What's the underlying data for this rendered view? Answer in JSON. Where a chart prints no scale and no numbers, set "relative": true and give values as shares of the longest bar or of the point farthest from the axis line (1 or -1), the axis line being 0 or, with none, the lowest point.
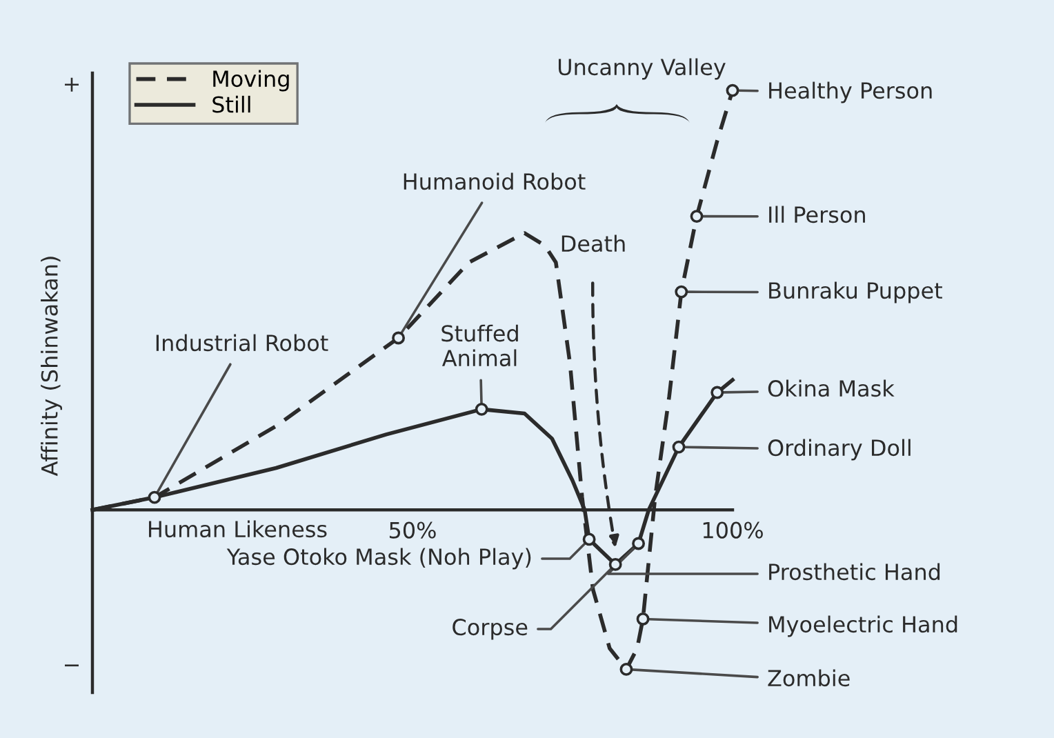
{
  "chart_data": {
    "type": "line",
    "relative": true,
    "xlabel": "Human Likeness",
    "ylabel": "Affinity (Shinwakan)",
    "xlim": [
      0,
      100
    ],
    "xticks": [
      {
        "value": 50,
        "label": "50%"
      },
      {
        "value": 100,
        "label": "100%"
      }
    ],
    "legend": "top left",
    "grid": false,
    "marker": "none",
    "series": [
      {
        "name": "Moving",
        "color": "#2b2b2b",
        "line_style": "dashed",
        "x": [
          0,
          9.7,
          28.7,
          47.8,
          58.8,
          67.5,
          70.7,
          72.4,
          74.6,
          76.5,
          78.2,
          80.8,
          83.4,
          85.1,
          86.0,
          87.9,
          90.1,
          92.0,
          94.4,
          97.6,
          100
        ],
        "values": [
          0,
          0.03,
          0.2,
          0.41,
          0.59,
          0.66,
          0.63,
          0.59,
          0.35,
          0.03,
          -0.19,
          -0.33,
          -0.38,
          -0.33,
          -0.26,
          0.03,
          0.27,
          0.52,
          0.7,
          0.88,
          1
        ]
      },
      {
        "name": "Still",
        "color": "#2b2b2b",
        "line_style": "solid",
        "x": [
          0,
          9.7,
          28.7,
          45.9,
          60.8,
          67.5,
          71.8,
          75.0,
          76.9,
          77.6,
          81.7,
          85.3,
          86.9,
          91.6,
          97.6,
          100
        ],
        "values": [
          0,
          0.03,
          0.1,
          0.18,
          0.24,
          0.23,
          0.17,
          0.07,
          0,
          -0.07,
          -0.13,
          -0.08,
          0,
          0.15,
          0.28,
          0.31
        ]
      }
    ],
    "annotations": [
      {
        "text": "Industrial Robot",
        "x": 9.7,
        "y": 0.03
      },
      {
        "text": "Humanoid Robot",
        "x": 47.8,
        "y": 0.41
      },
      {
        "text": "Stuffed\nAnimal",
        "x": 60.8,
        "y": 0.24
      },
      {
        "text": "Healthy Person",
        "x": 100,
        "y": 1
      },
      {
        "text": "Ill Person",
        "x": 94.4,
        "y": 0.7
      },
      {
        "text": "Bunraku Puppet",
        "x": 92.0,
        "y": 0.52
      },
      {
        "text": "Okina Mask",
        "x": 97.6,
        "y": 0.28
      },
      {
        "text": "Ordinary Doll",
        "x": 91.6,
        "y": 0.15
      },
      {
        "text": "Prosthetic Hand",
        "x": 85.3,
        "y": -0.08
      },
      {
        "text": "Myoelectric Hand",
        "x": 86.0,
        "y": -0.26
      },
      {
        "text": "Zombie",
        "x": 83.4,
        "y": -0.38
      },
      {
        "text": "Yase Otoko Mask (Noh Play)",
        "x": 77.6,
        "y": -0.07
      },
      {
        "text": "Corpse",
        "x": 81.7,
        "y": -0.13
      },
      "Uncanny Valley",
      "Death",
      "+",
      "−"
    ]
  }
}
